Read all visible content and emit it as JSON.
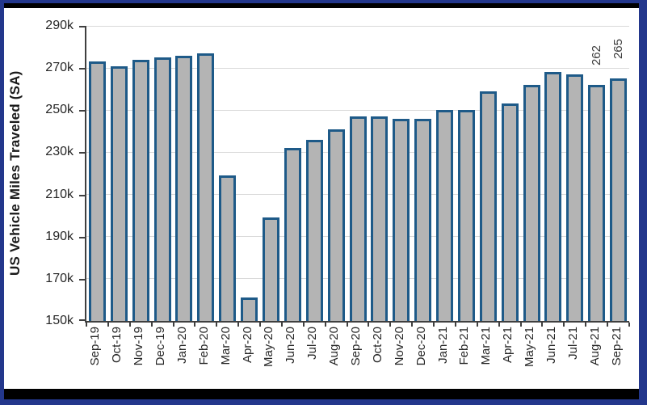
{
  "window": {
    "background": "#000000",
    "frame_border_color": "#23378c",
    "inner_band_color": "#000000",
    "card_background": "#ffffff"
  },
  "chart_data": {
    "type": "bar",
    "title": "",
    "xlabel": "",
    "ylabel": "US Vehicle Miles Traveled (SA)",
    "categories": [
      "Sep-19",
      "Oct-19",
      "Nov-19",
      "Dec-19",
      "Jan-20",
      "Feb-20",
      "Mar-20",
      "Apr-20",
      "May-20",
      "Jun-20",
      "Jul-20",
      "Aug-20",
      "Sep-20",
      "Oct-20",
      "Nov-20",
      "Dec-20",
      "Jan-21",
      "Feb-21",
      "Mar-21",
      "Apr-21",
      "May-21",
      "Jun-21",
      "Jul-21",
      "Aug-21",
      "Sep-21"
    ],
    "values": [
      273,
      271,
      274,
      275,
      276,
      277,
      219,
      161,
      199,
      232,
      236,
      241,
      247,
      247,
      246,
      246,
      250,
      250,
      259,
      253,
      262,
      268,
      267,
      262,
      265
    ],
    "point_labels": {
      "Aug-21": "262",
      "Sep-21": "265"
    },
    "ylim": [
      150,
      290
    ],
    "yticks": [
      150,
      170,
      190,
      210,
      230,
      250,
      270,
      290
    ],
    "ytick_suffix": "k",
    "grid": true,
    "legend": "none",
    "colors": {
      "bar_fill": "#b4b4b4",
      "bar_border": "#1e5a88",
      "gridline": "#d9d9d9",
      "axis": "#3f3f3f",
      "tick_text": "#262626",
      "point_label_text": "#3c3c3c"
    }
  }
}
